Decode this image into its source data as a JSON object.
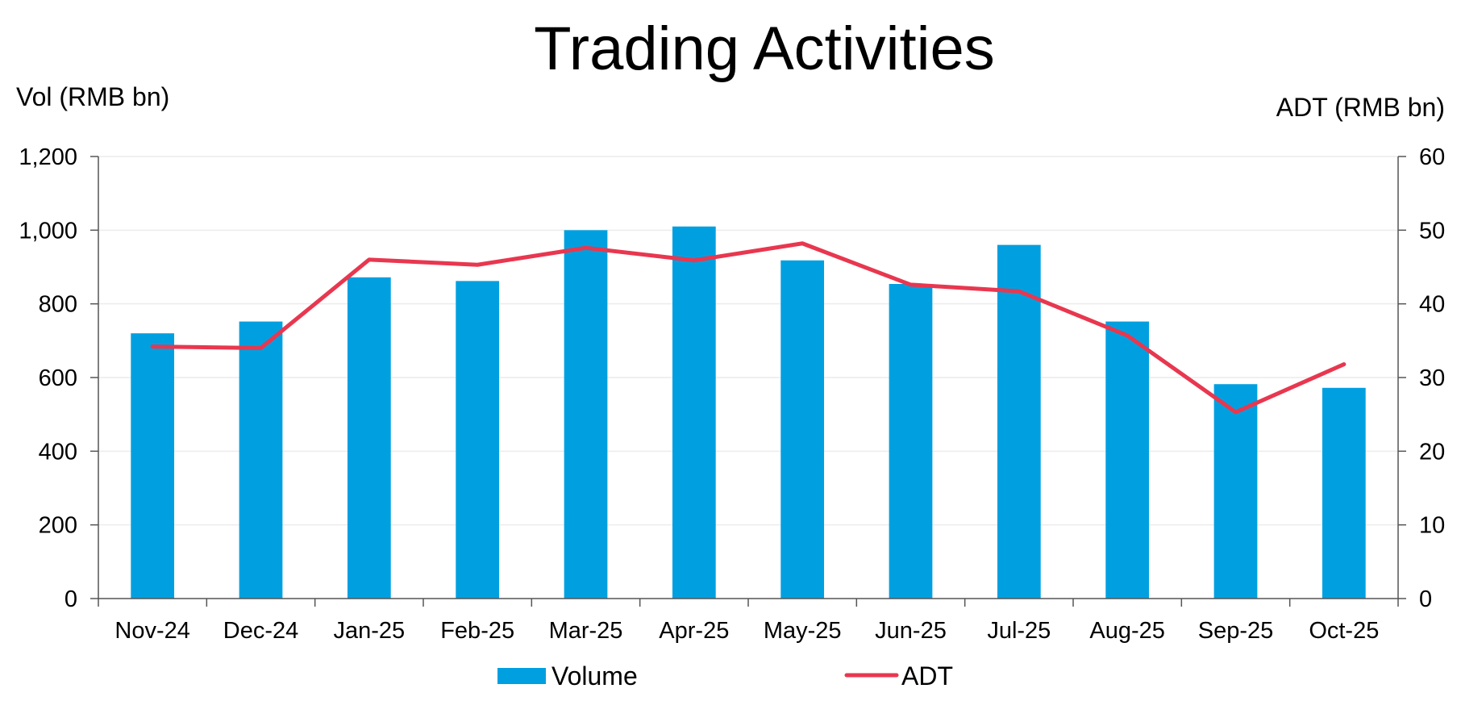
{
  "chart_data": {
    "type": "bar",
    "title": "Trading Activities",
    "ylabel_left": "Vol (RMB bn)",
    "ylabel_right": "ADT (RMB bn)",
    "categories": [
      "Nov-24",
      "Dec-24",
      "Jan-25",
      "Feb-25",
      "Mar-25",
      "Apr-25",
      "May-25",
      "Jun-25",
      "Jul-25",
      "Aug-25",
      "Sep-25",
      "Oct-25"
    ],
    "ylim_left": [
      0,
      1200
    ],
    "yticks_left": [
      "0",
      "200",
      "400",
      "600",
      "800",
      "1,000",
      "1,200"
    ],
    "yticks_left_values": [
      0,
      200,
      400,
      600,
      800,
      1000,
      1200
    ],
    "ylim_right": [
      0,
      60
    ],
    "yticks_right": [
      "0",
      "10",
      "20",
      "30",
      "40",
      "50",
      "60"
    ],
    "yticks_right_values": [
      0,
      10,
      20,
      30,
      40,
      50,
      60
    ],
    "grid": true,
    "legend_position": "bottom",
    "series": [
      {
        "name": "Volume",
        "type": "bar",
        "axis": "left",
        "color": "#00A0E0",
        "values": [
          720,
          752,
          872,
          862,
          1000,
          1010,
          918,
          854,
          960,
          752,
          582,
          572
        ]
      },
      {
        "name": "ADT",
        "type": "line",
        "axis": "right",
        "color": "#E8374F",
        "values": [
          34.2,
          34.0,
          46.0,
          45.3,
          47.6,
          45.9,
          48.2,
          42.6,
          41.7,
          35.7,
          25.3,
          31.8
        ]
      }
    ]
  }
}
